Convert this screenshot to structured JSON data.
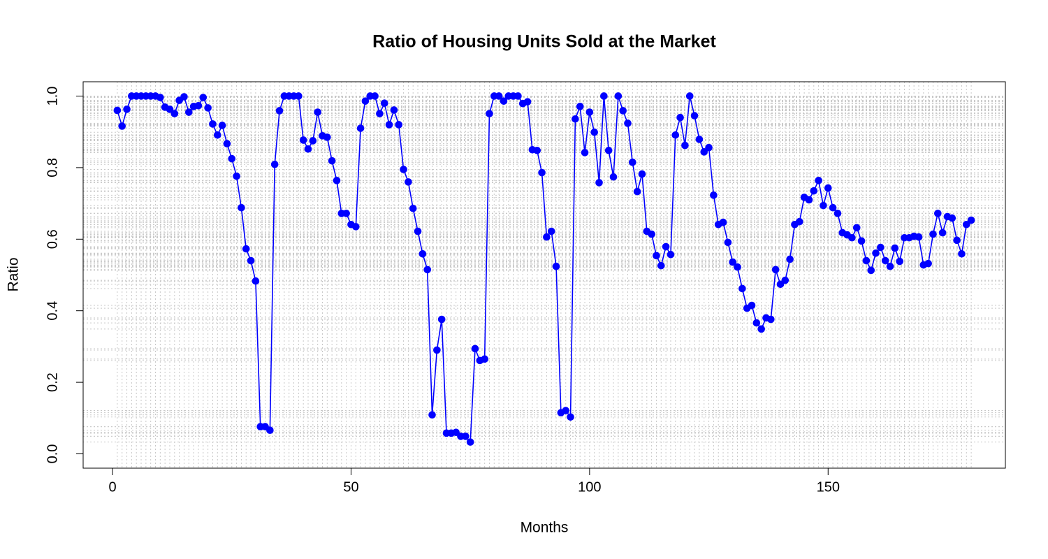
{
  "chart_data": {
    "type": "line",
    "title": "Ratio of Housing Units Sold at the Market",
    "x_label": "Months",
    "y_label": "Ratio",
    "color": "#0000ff",
    "grid": true,
    "xlim": [
      -6.16,
      187.16
    ],
    "ylim": [
      -0.04,
      1.04
    ],
    "xticks": [
      0,
      50,
      100,
      150
    ],
    "yticks": [
      {
        "value": 0,
        "label": "0.0"
      },
      0.2,
      0.4,
      0.6,
      0.8,
      {
        "value": 1,
        "label": "1.0"
      }
    ],
    "x": [
      1,
      2,
      3,
      4,
      5,
      6,
      7,
      8,
      9,
      10,
      11,
      12,
      13,
      14,
      15,
      16,
      17,
      18,
      19,
      20,
      21,
      22,
      23,
      24,
      25,
      26,
      27,
      28,
      29,
      30,
      31,
      32,
      33,
      34,
      35,
      36,
      37,
      38,
      39,
      40,
      41,
      42,
      43,
      44,
      45,
      46,
      47,
      48,
      49,
      50,
      51,
      52,
      53,
      54,
      55,
      56,
      57,
      58,
      59,
      60,
      61,
      62,
      63,
      64,
      65,
      66,
      67,
      68,
      69,
      70,
      71,
      72,
      73,
      74,
      75,
      76,
      77,
      78,
      79,
      80,
      81,
      82,
      83,
      84,
      85,
      86,
      87,
      88,
      89,
      90,
      91,
      92,
      93,
      94,
      95,
      96,
      97,
      98,
      99,
      100,
      101,
      102,
      103,
      104,
      105,
      106,
      107,
      108,
      109,
      110,
      111,
      112,
      113,
      114,
      115,
      116,
      117,
      118,
      119,
      120,
      121,
      122,
      123,
      124,
      125,
      126,
      127,
      128,
      129,
      130,
      131,
      132,
      133,
      134,
      135,
      136,
      137,
      138,
      139,
      140,
      141,
      142,
      143,
      144,
      145,
      146,
      147,
      148,
      149,
      150,
      151,
      152,
      153,
      154,
      155,
      156,
      157,
      158,
      159,
      160,
      161,
      162,
      163,
      164,
      165,
      166,
      167,
      168,
      169,
      170,
      171,
      172,
      173,
      174,
      175,
      176,
      177,
      178,
      179,
      180
    ],
    "values": [
      0.96,
      0.916,
      0.963,
      1.0,
      1.0,
      1.0,
      1.0,
      1.0,
      1.0,
      0.996,
      0.969,
      0.963,
      0.951,
      0.988,
      0.998,
      0.955,
      0.971,
      0.973,
      0.996,
      0.967,
      0.922,
      0.891,
      0.918,
      0.867,
      0.825,
      0.776,
      0.688,
      0.573,
      0.54,
      0.483,
      0.076,
      0.076,
      0.066,
      0.809,
      0.959,
      1.0,
      1.0,
      1.0,
      1.0,
      0.877,
      0.852,
      0.875,
      0.955,
      0.889,
      0.885,
      0.819,
      0.764,
      0.672,
      0.672,
      0.641,
      0.635,
      0.91,
      0.986,
      1.0,
      1.0,
      0.951,
      0.98,
      0.92,
      0.961,
      0.92,
      0.795,
      0.76,
      0.686,
      0.622,
      0.559,
      0.515,
      0.109,
      0.29,
      0.376,
      0.058,
      0.058,
      0.06,
      0.049,
      0.049,
      0.033,
      0.294,
      0.261,
      0.265,
      0.951,
      1.0,
      1.0,
      0.986,
      1.0,
      1.0,
      1.0,
      0.979,
      0.984,
      0.85,
      0.848,
      0.786,
      0.606,
      0.622,
      0.524,
      0.115,
      0.121,
      0.103,
      0.936,
      0.971,
      0.842,
      0.955,
      0.899,
      0.758,
      1.0,
      0.848,
      0.774,
      1.0,
      0.959,
      0.924,
      0.815,
      0.733,
      0.782,
      0.622,
      0.614,
      0.554,
      0.526,
      0.579,
      0.557,
      0.891,
      0.94,
      0.862,
      1.0,
      0.945,
      0.879,
      0.844,
      0.856,
      0.723,
      0.641,
      0.647,
      0.591,
      0.536,
      0.522,
      0.462,
      0.407,
      0.415,
      0.366,
      0.349,
      0.38,
      0.376,
      0.515,
      0.474,
      0.485,
      0.544,
      0.641,
      0.649,
      0.717,
      0.71,
      0.735,
      0.764,
      0.694,
      0.743,
      0.688,
      0.672,
      0.618,
      0.612,
      0.604,
      0.632,
      0.595,
      0.54,
      0.513,
      0.561,
      0.577,
      0.54,
      0.524,
      0.575,
      0.538,
      0.604,
      0.604,
      0.608,
      0.606,
      0.528,
      0.532,
      0.614,
      0.672,
      0.618,
      0.663,
      0.659,
      0.597,
      0.559,
      0.641,
      0.653
    ]
  }
}
